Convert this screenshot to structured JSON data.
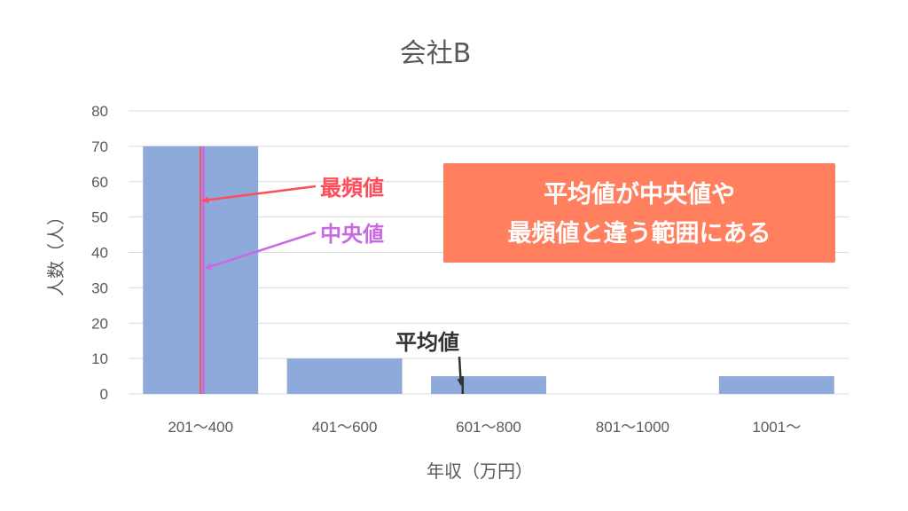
{
  "chart_data": {
    "type": "bar",
    "title": "会社B",
    "xlabel": "年収（万円）",
    "ylabel": "人数（人）",
    "categories": [
      "201〜400",
      "401〜600",
      "601〜800",
      "801〜1000",
      "1001〜"
    ],
    "values": [
      70,
      10,
      5,
      0,
      5
    ],
    "ylim": [
      0,
      80
    ],
    "yticks": [
      0,
      10,
      20,
      30,
      40,
      50,
      60,
      70,
      80
    ],
    "grid": true,
    "bar_color": "#8eaadb",
    "annotations": {
      "mode": {
        "label": "最頻値",
        "color": "#ff4d5a",
        "x_value": 300
      },
      "median": {
        "label": "中央値",
        "color": "#c86ae6",
        "x_value": 305
      },
      "mean": {
        "label": "平均値",
        "color": "#333333",
        "x_value": 655
      }
    },
    "callout": {
      "lines": [
        "平均値が中央値や",
        "最頻値と違う範囲にある"
      ],
      "color": "#ff7f5e"
    }
  }
}
